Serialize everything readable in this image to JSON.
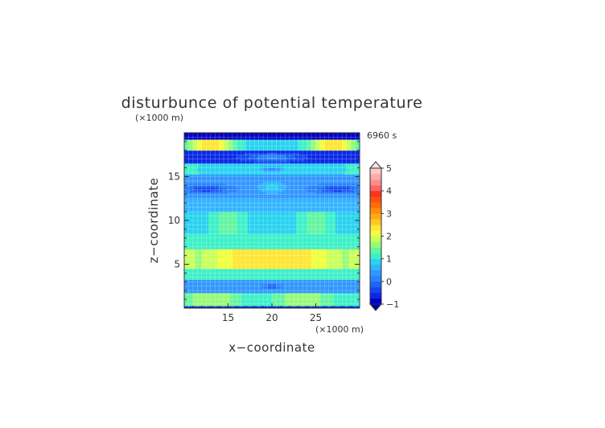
{
  "chart_data": {
    "type": "heatmap",
    "title": "disturbunce of potential temperature",
    "xlabel": "x−coordinate",
    "ylabel": "z−coordinate",
    "x_unit": "(×1000 m)",
    "y_unit": "(×1000 m)",
    "time_label": "6960 s",
    "xlim": [
      10,
      30
    ],
    "ylim": [
      0,
      20
    ],
    "x_ticks": [
      15,
      20,
      25
    ],
    "y_ticks": [
      5,
      10,
      15
    ],
    "grid": true,
    "legend": "right",
    "colorbar": {
      "min": -1,
      "max": 5,
      "step": 0.25,
      "tick_values": [
        -1,
        0,
        1,
        2,
        3,
        4,
        5
      ],
      "tick_labels": [
        "−1",
        "0",
        "1",
        "2",
        "3",
        "4",
        "5"
      ],
      "colors": [
        "#0000c8",
        "#0a28e6",
        "#1446f0",
        "#1e64f5",
        "#2882fa",
        "#3296ff",
        "#32b4ff",
        "#28d2f0",
        "#3cf0c8",
        "#64f5a0",
        "#96fa78",
        "#c8ff5a",
        "#f0ff3c",
        "#ffe632",
        "#ffc81e",
        "#ffaa14",
        "#ff8c0a",
        "#ff6e0a",
        "#ff5014",
        "#ff321e",
        "#ff6464",
        "#ff8c8c",
        "#ffaaaa",
        "#ffc8c8"
      ]
    },
    "field_description_bands": [
      {
        "z_range": [
          19.2,
          20
        ],
        "value_center": -0.9
      },
      {
        "z_range": [
          18.0,
          19.2
        ],
        "value_center": 1.8,
        "x_peaks": [
          13,
          27
        ]
      },
      {
        "z_range": [
          16.6,
          18.0
        ],
        "value_center": -0.6
      },
      {
        "z_range": [
          15.2,
          16.6
        ],
        "value_center": 1.0
      },
      {
        "z_range": [
          12.4,
          15.2
        ],
        "value_center": 0.3
      },
      {
        "z_range": [
          11.0,
          12.4
        ],
        "value_center": 0.5
      },
      {
        "z_range": [
          8.6,
          11.0
        ],
        "value_center": 0.9
      },
      {
        "z_range": [
          6.8,
          8.6
        ],
        "value_center": 1.0
      },
      {
        "z_range": [
          4.5,
          6.8
        ],
        "value_center": 2.0
      },
      {
        "z_range": [
          3.2,
          4.5
        ],
        "value_center": 1.0
      },
      {
        "z_range": [
          1.8,
          3.2
        ],
        "value_center": 0.4
      },
      {
        "z_range": [
          0.2,
          1.8
        ],
        "value_center": 1.4
      },
      {
        "z_range": [
          0.0,
          0.2
        ],
        "value_center": -0.6
      }
    ]
  }
}
